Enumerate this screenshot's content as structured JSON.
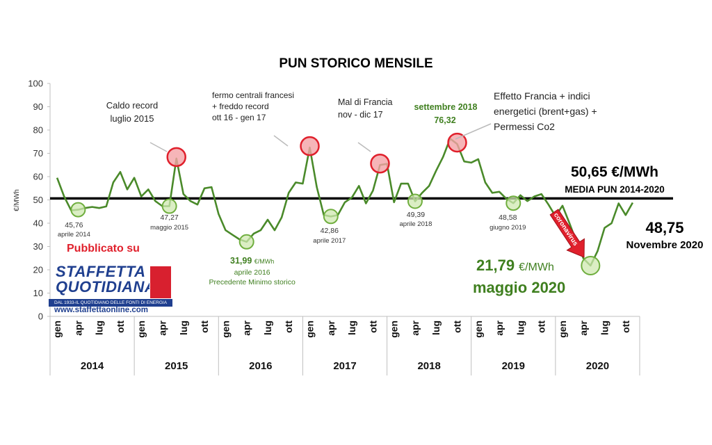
{
  "colors": {
    "line": "#4a8a2a",
    "mean_line": "#000000",
    "highlight_red_fill": "#f4a3a6",
    "highlight_red_stroke": "#e0202c",
    "highlight_green_fill": "#cfe8b0",
    "highlight_green_stroke": "#6fae3e",
    "arrow_red": "#e0202c",
    "published_red": "#e0202c",
    "green_text": "#3f7f1f",
    "brand_blue": "#1f3f8f"
  },
  "publisher": {
    "published_text": "Pubblicato su",
    "logo_line1": "STAFFETTA",
    "logo_line2": "QUOTIDIANA",
    "logo_tagline": "DAL 1933-IL QUOTIDIANO DELLE FONTI DI ENERGIA",
    "logo_url": "www.staffettaonline.com"
  },
  "chart_data": {
    "type": "line",
    "title": "PUN STORICO MENSILE",
    "ylabel": "€/MWh",
    "ylim": [
      0,
      100
    ],
    "yticks": [
      0,
      10,
      20,
      30,
      40,
      50,
      60,
      70,
      80,
      90,
      100
    ],
    "grid": false,
    "years": [
      "2014",
      "2015",
      "2016",
      "2017",
      "2018",
      "2019",
      "2020"
    ],
    "month_tick_labels": [
      "gen",
      "apr",
      "lug",
      "ott"
    ],
    "series": [
      {
        "values": [
          59.5,
          51.5,
          45.5,
          45.8,
          46.5,
          47.0,
          46.5,
          47.2,
          57.5,
          62.0,
          54.5,
          59.5,
          51.5,
          54.5,
          49.5,
          47.3,
          47.3,
          67.8,
          52.5,
          49.5,
          48.0,
          55.0,
          55.5,
          44.0,
          37.0,
          35.0,
          33.0,
          32.0,
          35.5,
          37.0,
          41.5,
          37.0,
          42.5,
          53.0,
          57.5,
          57.0,
          72.5,
          55.5,
          43.5,
          42.9,
          43.5,
          49.0,
          51.0,
          56.0,
          48.5,
          54.0,
          65.0,
          65.5,
          49.0,
          57.0,
          57.0,
          49.4,
          53.0,
          56.0,
          62.5,
          68.5,
          76.3,
          74.0,
          66.5,
          66.0,
          67.5,
          57.5,
          53.0,
          53.5,
          50.5,
          48.6,
          52.0,
          49.5,
          51.5,
          52.5,
          48.0,
          43.0,
          47.5,
          40.0,
          32.0,
          24.8,
          21.8,
          28.0,
          38.0,
          40.0,
          48.5,
          43.5,
          48.8
        ]
      }
    ],
    "mean": {
      "value": 50.65,
      "label": "50,65 €/MWh",
      "sublabel": "MEDIA PUN 2014-2020"
    },
    "point_labels": [
      {
        "month_index": 3,
        "value": 45.76,
        "label": "45,76",
        "sublabel": "aprile 2014"
      },
      {
        "month_index": 16,
        "value": 47.27,
        "label": "47,27",
        "sublabel": "maggio 2015"
      },
      {
        "month_index": 27,
        "value": 31.99,
        "label": "31,99",
        "unit": "€/MWh",
        "sublabel": "aprile 2016",
        "note": "Precedente Minimo storico"
      },
      {
        "month_index": 39,
        "value": 42.86,
        "label": "42,86",
        "sublabel": "aprile 2017"
      },
      {
        "month_index": 51,
        "value": 49.39,
        "label": "49,39",
        "sublabel": "aprile 2018"
      },
      {
        "month_index": 65,
        "value": 48.58,
        "label": "48,58",
        "sublabel": "giugno 2019"
      },
      {
        "month_index": 56,
        "value": 76.32,
        "label": "76,32",
        "header": "settembre 2018"
      },
      {
        "month_index": 76,
        "value": 21.79,
        "label": "21,79",
        "unit": "€/MWh",
        "sublabel": "maggio 2020"
      },
      {
        "month_index": 82,
        "value": 48.75,
        "label": "48,75",
        "sublabel": "Novembre 2020"
      }
    ],
    "annotations": [
      {
        "month_index": 17,
        "lines": [
          "Caldo record",
          "luglio 2015"
        ]
      },
      {
        "month_index": 36,
        "lines": [
          "fermo centrali francesi",
          "+ freddo record",
          "ott 16 - gen 17"
        ]
      },
      {
        "month_index": 46,
        "lines": [
          "Mal di Francia",
          "nov - dic 17"
        ]
      },
      {
        "month_index": 57,
        "lines": [
          "Effetto Francia + indici",
          "energetici (brent+gas) +",
          "Permessi Co2"
        ]
      }
    ],
    "red_highlights": [
      17,
      36,
      46,
      57
    ],
    "green_highlights": [
      3,
      16,
      27,
      39,
      51,
      65,
      76
    ],
    "arrow_label": "coronavirus"
  }
}
